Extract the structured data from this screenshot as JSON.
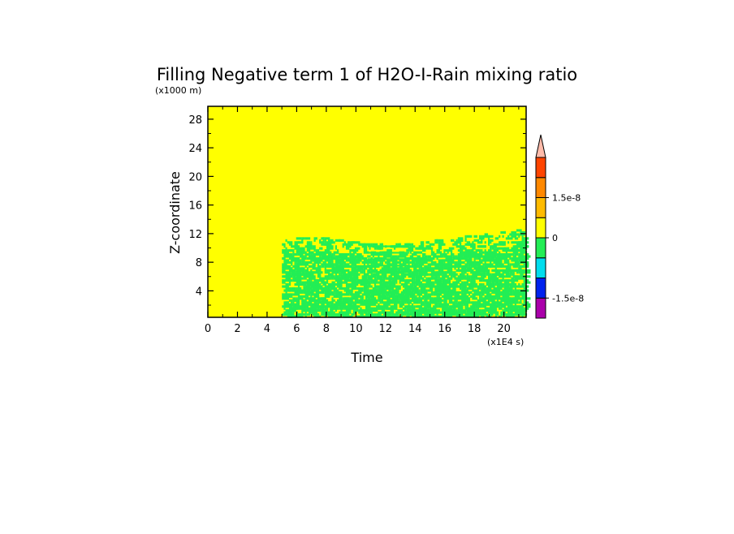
{
  "chart_data": {
    "type": "heatmap",
    "title": "Filling Negative term 1 of H2O-I-Rain mixing ratio",
    "xlabel": "Time",
    "ylabel": "Z-coordinate",
    "x_unit": "(x1E4 s)",
    "y_unit": "(x1000 m)",
    "xlim": [
      0,
      21.5
    ],
    "ylim": [
      0.3,
      29.8
    ],
    "x_ticks": [
      0,
      2,
      4,
      6,
      8,
      10,
      12,
      14,
      16,
      18,
      20
    ],
    "y_ticks": [
      4,
      8,
      12,
      16,
      20,
      24,
      28
    ],
    "background_color": "#ffff00",
    "background_level": "0 to 7.5e-9",
    "active_region": {
      "x_start": 5.0,
      "x_end": 21.5,
      "top_z": [
        11.0,
        11.5,
        11.2,
        10.8,
        10.5,
        10.4,
        10.6,
        11.0,
        11.5,
        11.8,
        12.2,
        12.5
      ]
    },
    "active_color": "#22ee55",
    "colorbar": {
      "levels": [
        {
          "color": "#aa00aa",
          "range": "< -1.5e-8"
        },
        {
          "color": "#0022ee",
          "range": "-1.5e-8 to -7.5e-9"
        },
        {
          "color": "#00ddee",
          "range": "-7.5e-9 to 0"
        },
        {
          "color": "#22ee55",
          "range": "0 region"
        },
        {
          "color": "#ffff00",
          "range": "0 to 7.5e-9"
        },
        {
          "color": "#ffbb00",
          "range": "7.5e-9 to 1.5e-8"
        },
        {
          "color": "#ff8800",
          "range": "1.5e-8 to 2.25e-8"
        },
        {
          "color": "#ff4400",
          "range": "2.25e-8 to 3e-8"
        }
      ],
      "over_color": "#ffbbaa",
      "tick_labels": [
        "1.5e-8",
        "0",
        "-1.5e-8"
      ]
    }
  }
}
